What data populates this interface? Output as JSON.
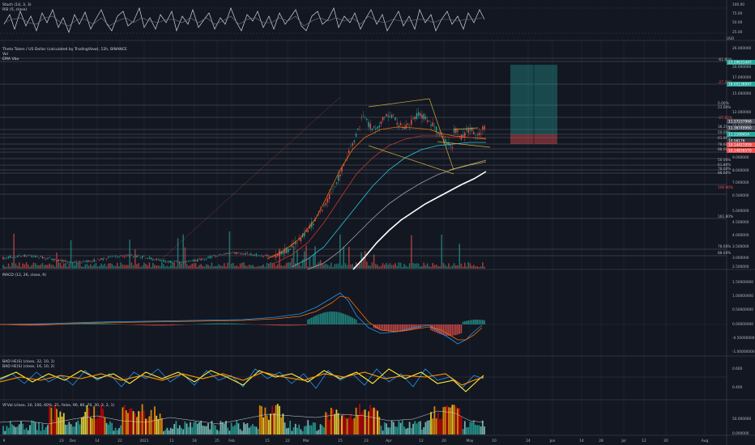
{
  "colors": {
    "background": "#131722",
    "up": "#26a69a",
    "down": "#ef5350",
    "ema_fast": "#ef6c00",
    "ema_mid": "#c0392b",
    "ema_slow": "#26c6da",
    "ema_long": "#9e9e9e",
    "ema_200": "#ffffff",
    "trendline": "#c9b037",
    "macd": "#2196f3",
    "signal": "#ff6d00"
  },
  "panels": {
    "stoch": {
      "labels": [
        "Stoch (14, 3, 3)",
        "RSI (5, close)"
      ],
      "price_labels": [
        "100.00",
        "75.00",
        "50.00",
        "25.00",
        "USD"
      ]
    },
    "main": {
      "labels": [
        "Theta Token / US Dollar (calculated by TradingView), 12h, BINANCE",
        "Vol",
        "EMA Vbo"
      ],
      "price_labels": [
        "26.000000",
        "20.000000",
        "17.000000",
        "15.000000",
        "12.000000",
        "10.500000",
        "9.000000",
        "8.000000",
        "7.000000",
        "6.500000",
        "5.000000",
        "4.500000",
        "4.000000",
        "3.500000",
        "3.000000",
        "2.500000"
      ],
      "fib_labels": [
        "-61.80%",
        "-27.20%",
        "0.00%",
        "23.60%",
        "-27.20%",
        "38.20%",
        "50.00%",
        "61.80%",
        "78.60%",
        "88.60%",
        "50.00%",
        "61.80%",
        "78.60%",
        "88.60%",
        "100.00%",
        "161.80%",
        "78.60%",
        "88.60%"
      ],
      "price_tags": [
        "23.29631447",
        "18.05136997",
        "11.57237968",
        "11.36749960",
        "11.1108454",
        "10.56176",
        "10.14421959",
        "10.14836570"
      ]
    },
    "macd": {
      "label": "MACD (12, 26, close, 9)",
      "price_labels": [
        "1.50000000",
        "1.00000000",
        "0.50000000",
        "0.00000000",
        "-0.50000000",
        "-1.00000000"
      ]
    },
    "bad": {
      "labels": [
        "BAD HE(S) (close, 32, 10, 1)",
        "BAD HE(S) (close, 16, 10, 2)"
      ],
      "price_labels": [
        "0.600",
        "0.400"
      ]
    },
    "vfvol": {
      "label": "VFVol (close, 10, 100, 60%, 21, false, 90, 80, 70, 30, 3, 2, 1)",
      "price_labels": [
        "50.000000",
        "0.000000"
      ]
    }
  },
  "chart_data": {
    "type": "candlestick",
    "symbol": "Theta Token / US Dollar",
    "timeframe": "12h",
    "exchange": "BINANCE",
    "x_ticks": [
      "9",
      "23",
      "Dec",
      "14",
      "22",
      "2021",
      "11",
      "18",
      "25",
      "Feb",
      "15",
      "22",
      "Mar",
      "15",
      "23",
      "Apr",
      "12",
      "20",
      "May",
      "10",
      "24",
      "Jun",
      "14",
      "28",
      "Jul",
      "12",
      "20",
      "Aug"
    ],
    "candles_approx": [
      {
        "phase": "Nov–Jan",
        "low": 1.9,
        "high": 2.3
      },
      {
        "phase": "Feb",
        "low": 2.1,
        "high": 3.0
      },
      {
        "phase": "early Mar",
        "low": 3.0,
        "high": 7.0
      },
      {
        "phase": "mid Mar",
        "peak": 15.0
      },
      {
        "phase": "Apr",
        "low": 11.5,
        "high": 14.5
      },
      {
        "phase": "late Apr",
        "low": 8.5,
        "high": 13.0
      },
      {
        "phase": "May",
        "low": 10.2,
        "high": 11.6
      }
    ],
    "last_price": 11.1108454,
    "macd_range": [
      -1.0,
      1.5
    ],
    "bad_range": [
      0.3,
      0.7
    ],
    "vfvol_range": [
      0,
      60
    ]
  }
}
